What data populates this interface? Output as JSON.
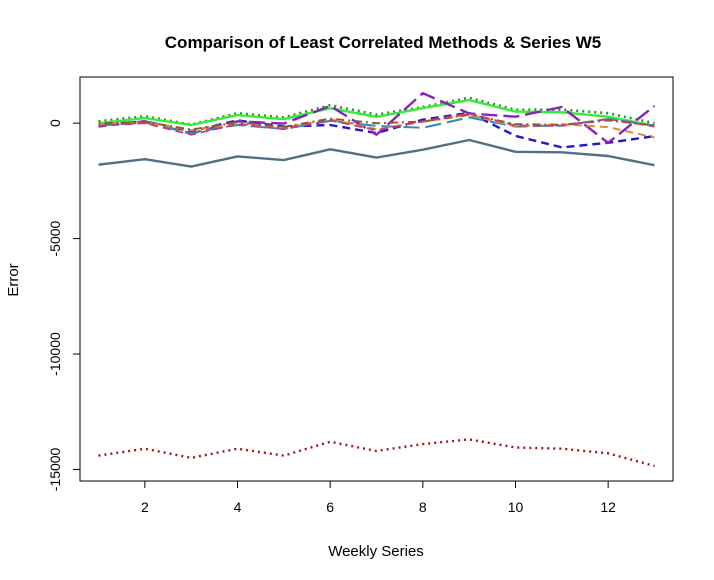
{
  "chart_data": {
    "type": "line",
    "title": "Comparison of Least Correlated Methods & Series W5",
    "xlabel": "Weekly Series",
    "ylabel": "Error",
    "xlim": [
      0.6,
      13.4
    ],
    "ylim": [
      -15500,
      2000
    ],
    "x_ticks": [
      2,
      4,
      6,
      8,
      10,
      12
    ],
    "y_ticks": [
      0,
      -5000,
      -10000,
      -15000
    ],
    "y_tick_labels": [
      "0",
      "-5000",
      "-10000",
      "-15000"
    ],
    "grid": false,
    "legend": "none",
    "x": [
      1,
      2,
      3,
      4,
      5,
      6,
      7,
      8,
      9,
      10,
      11,
      12,
      13
    ],
    "series": [
      {
        "color": "#52707f",
        "dash": "solid",
        "width": 2.4,
        "values": [
          -1800,
          -1560,
          -1880,
          -1440,
          -1600,
          -1130,
          -1490,
          -1150,
          -730,
          -1240,
          -1260,
          -1420,
          -1820
        ]
      },
      {
        "color": "#a31515",
        "dash": "dotted",
        "width": 2.4,
        "values": [
          -14400,
          -14100,
          -14500,
          -14100,
          -14400,
          -13800,
          -14200,
          -13900,
          -13700,
          -14050,
          -14100,
          -14300,
          -14850
        ]
      },
      {
        "color": "#2f8a2f",
        "dash": "dotted",
        "width": 2.6,
        "values": [
          80,
          300,
          -60,
          430,
          250,
          780,
          370,
          700,
          1100,
          580,
          590,
          430,
          0
        ]
      },
      {
        "color": "#33ee33",
        "dash": "solid",
        "width": 2.4,
        "values": [
          0,
          220,
          -80,
          350,
          170,
          650,
          270,
          650,
          1000,
          500,
          470,
          280,
          -120
        ]
      },
      {
        "color": "#1a1acc",
        "dash": "dashed",
        "width": 2.4,
        "values": [
          -140,
          80,
          -350,
          120,
          -150,
          -80,
          -430,
          150,
          450,
          -550,
          -1050,
          -850,
          -560
        ]
      },
      {
        "color": "#8a22bb",
        "dash": "longdash",
        "width": 2.4,
        "values": [
          -80,
          80,
          -450,
          80,
          -20,
          750,
          -500,
          1300,
          420,
          280,
          700,
          -850,
          750
        ]
      },
      {
        "color": "#2b8cbe",
        "dash": "longdash",
        "width": 2.0,
        "values": [
          -100,
          20,
          -420,
          -80,
          -250,
          100,
          -120,
          -200,
          250,
          -150,
          -100,
          180,
          -100
        ]
      },
      {
        "color": "#e08a3c",
        "dash": "dashed",
        "width": 2.0,
        "values": [
          -60,
          40,
          -300,
          -20,
          -200,
          170,
          -260,
          60,
          350,
          -130,
          -50,
          -170,
          -620
        ]
      },
      {
        "color": "#8c5a2b",
        "dash": "dotdash",
        "width": 2.0,
        "values": [
          -20,
          60,
          -280,
          40,
          -160,
          200,
          0,
          70,
          380,
          -40,
          -70,
          120,
          -100
        ]
      },
      {
        "color": "#c43c7c",
        "dash": "dashed",
        "width": 1.8,
        "values": [
          -120,
          0,
          -500,
          -40,
          -260,
          120,
          -300,
          80,
          420,
          -100,
          -120,
          180,
          -150
        ]
      }
    ]
  }
}
